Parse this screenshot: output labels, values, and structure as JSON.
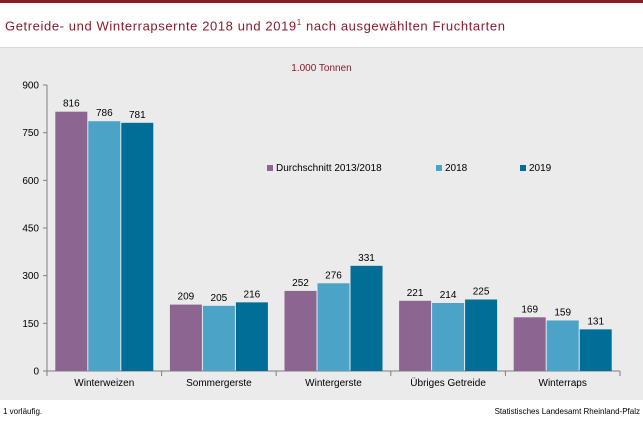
{
  "title": {
    "main": "Getreide- und Winterrapsernte 2018 und 2019",
    "footnote_ref": "1",
    "rest": " nach ausgewählten Fruchtarten"
  },
  "unit_label": "1.000 Tonnen",
  "footnote": "1 vorläufig.",
  "source": "Statistisches Landesamt Rheinland-Pfalz",
  "colors": {
    "brand": "#8b1a2b",
    "series": [
      "#8c6690",
      "#4ba3c8",
      "#006e96"
    ]
  },
  "chart_data": {
    "type": "bar",
    "categories": [
      "Winterweizen",
      "Sommergerste",
      "Wintergerste",
      "Übriges Getreide",
      "Winterraps"
    ],
    "series": [
      {
        "name": "Durchschnitt 2013/2018",
        "values": [
          816,
          209,
          252,
          221,
          169
        ]
      },
      {
        "name": "2018",
        "values": [
          786,
          205,
          276,
          214,
          159
        ]
      },
      {
        "name": "2019",
        "values": [
          781,
          216,
          331,
          225,
          131
        ]
      }
    ],
    "ylim": [
      0,
      900
    ],
    "yticks": [
      0,
      150,
      300,
      450,
      600,
      750,
      900
    ],
    "legend": "inside-top-right",
    "grid": false
  }
}
